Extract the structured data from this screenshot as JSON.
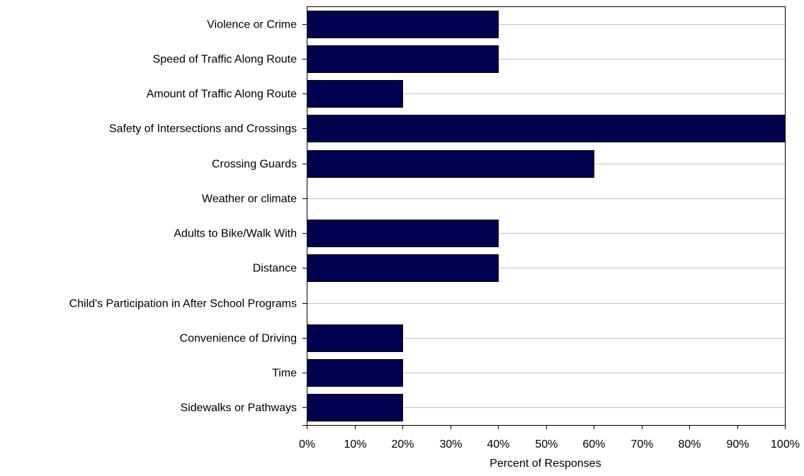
{
  "chart_data": {
    "type": "bar",
    "orientation": "horizontal",
    "categories": [
      "Violence or Crime",
      "Speed of Traffic Along Route",
      "Amount of Traffic Along Route",
      "Safety of Intersections and Crossings",
      "Crossing Guards",
      "Weather or climate",
      "Adults to Bike/Walk With",
      "Distance",
      "Child's Participation in After School Programs",
      "Convenience of Driving",
      "Time",
      "Sidewalks or Pathways"
    ],
    "values": [
      40,
      40,
      20,
      100,
      60,
      0,
      40,
      40,
      0,
      20,
      20,
      20
    ],
    "xlabel": "Percent of Responses",
    "ylabel": "",
    "xlim": [
      0,
      100
    ],
    "xticks": [
      "0%",
      "10%",
      "20%",
      "30%",
      "40%",
      "50%",
      "60%",
      "70%",
      "80%",
      "90%",
      "100%"
    ],
    "grid": "horizontal",
    "legend": "none",
    "colors": {
      "bar": "#000050",
      "bar_edge": "#000000",
      "grid": "#c0c0c0",
      "axis": "#000000"
    }
  }
}
